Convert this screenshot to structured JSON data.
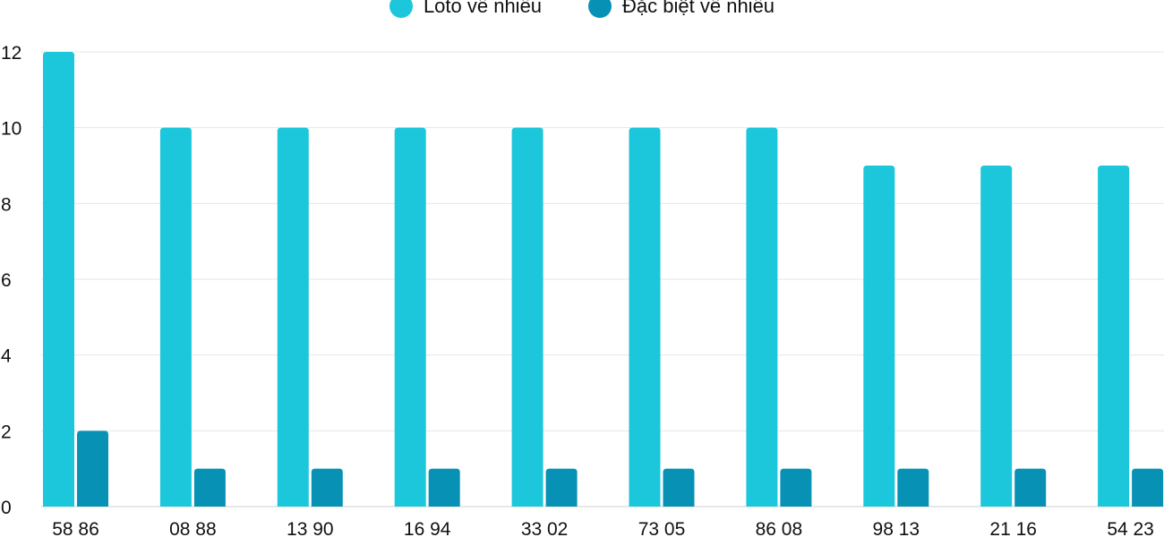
{
  "chart_data": {
    "type": "bar",
    "categories": [
      "58 86",
      "08 88",
      "13 90",
      "16 94",
      "33 02",
      "73 05",
      "86 08",
      "98 13",
      "21 16",
      "54 23"
    ],
    "series": [
      {
        "name": "Loto về nhiều",
        "color": "#1cc7db",
        "values": [
          12,
          10,
          10,
          10,
          10,
          10,
          10,
          9,
          9,
          9
        ]
      },
      {
        "name": "Đặc biệt về nhiều",
        "color": "#0792b5",
        "values": [
          2,
          1,
          1,
          1,
          1,
          1,
          1,
          1,
          1,
          1
        ]
      }
    ],
    "title": "",
    "xlabel": "",
    "ylabel": "",
    "ylim": [
      0,
      12
    ],
    "yticks": [
      0,
      2,
      4,
      6,
      8,
      10,
      12
    ],
    "grid": true,
    "legend_position": "top-center"
  }
}
